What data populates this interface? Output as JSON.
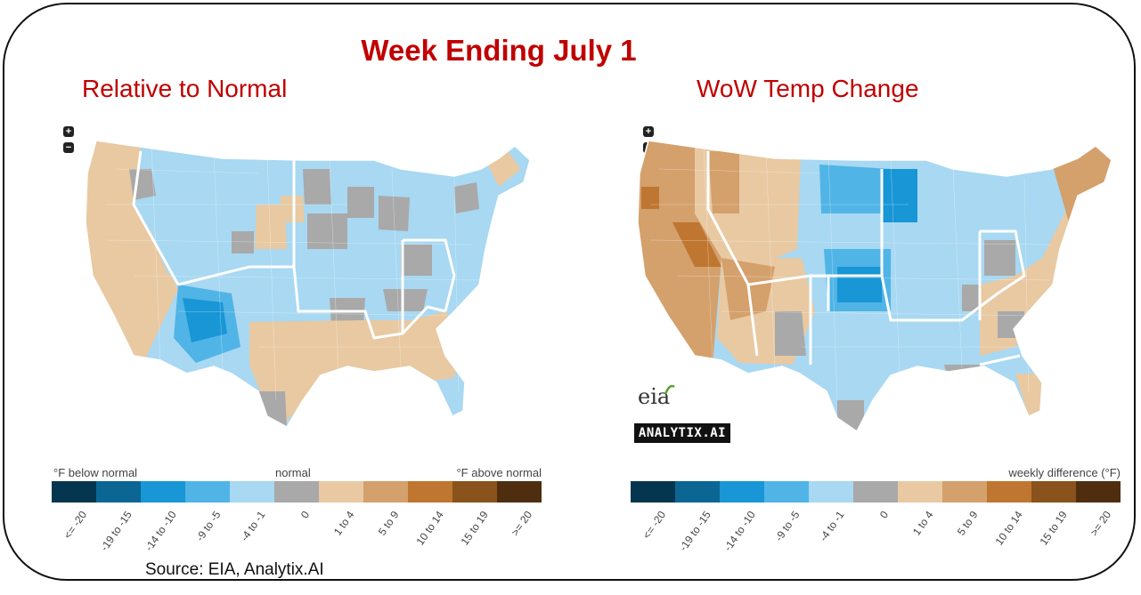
{
  "title": "Week Ending July 1",
  "panels": [
    {
      "title": "Relative to Normal",
      "legend": {
        "left_caption": "°F below normal",
        "center_caption": "normal",
        "right_caption": "°F above normal"
      }
    },
    {
      "title": "WoW Temp Change",
      "legend": {
        "right_caption": "weekly difference (°F)"
      }
    }
  ],
  "legend_bins": [
    {
      "label": "<= -20",
      "color": "#05364f"
    },
    {
      "label": "-19 to -15",
      "color": "#0b6694"
    },
    {
      "label": "-14 to -10",
      "color": "#1896d6"
    },
    {
      "label": "-9 to -5",
      "color": "#50b4e6"
    },
    {
      "label": "-4 to -1",
      "color": "#a8d8f2"
    },
    {
      "label": "0",
      "color": "#a9a9a9"
    },
    {
      "label": "1 to 4",
      "color": "#e8c9a2"
    },
    {
      "label": "5 to 9",
      "color": "#d4a06c"
    },
    {
      "label": "10 to 14",
      "color": "#bf7630"
    },
    {
      "label": "15 to 19",
      "color": "#8a521c"
    },
    {
      "label": ">= 20",
      "color": "#4f2e10"
    }
  ],
  "zoom": {
    "in": "+",
    "out": "−"
  },
  "logos": {
    "eia": "eia",
    "analytix": "ANALYTIX.AI"
  },
  "source": "Source: EIA, Analytix.AI",
  "regions_left": {
    "pacific": "1 to 4",
    "mountain": "-4 to -1",
    "southwest": "-9 to -5",
    "west_north_central": "-4 to -1",
    "east_north_central": "-4 to -1",
    "south_central": "1 to 4",
    "southeast": "1 to 4",
    "northeast": "-4 to -1",
    "florida": "-4 to -1"
  },
  "regions_right": {
    "pacific": "5 to 9",
    "mountain": "5 to 9",
    "nevada": "10 to 14",
    "west_north_central": "-9 to -5",
    "east_north_central": "-4 to -1",
    "south_central": "-4 to -1",
    "southeast": "1 to 4",
    "northeast": "5 to 9",
    "florida": "1 to 4"
  }
}
